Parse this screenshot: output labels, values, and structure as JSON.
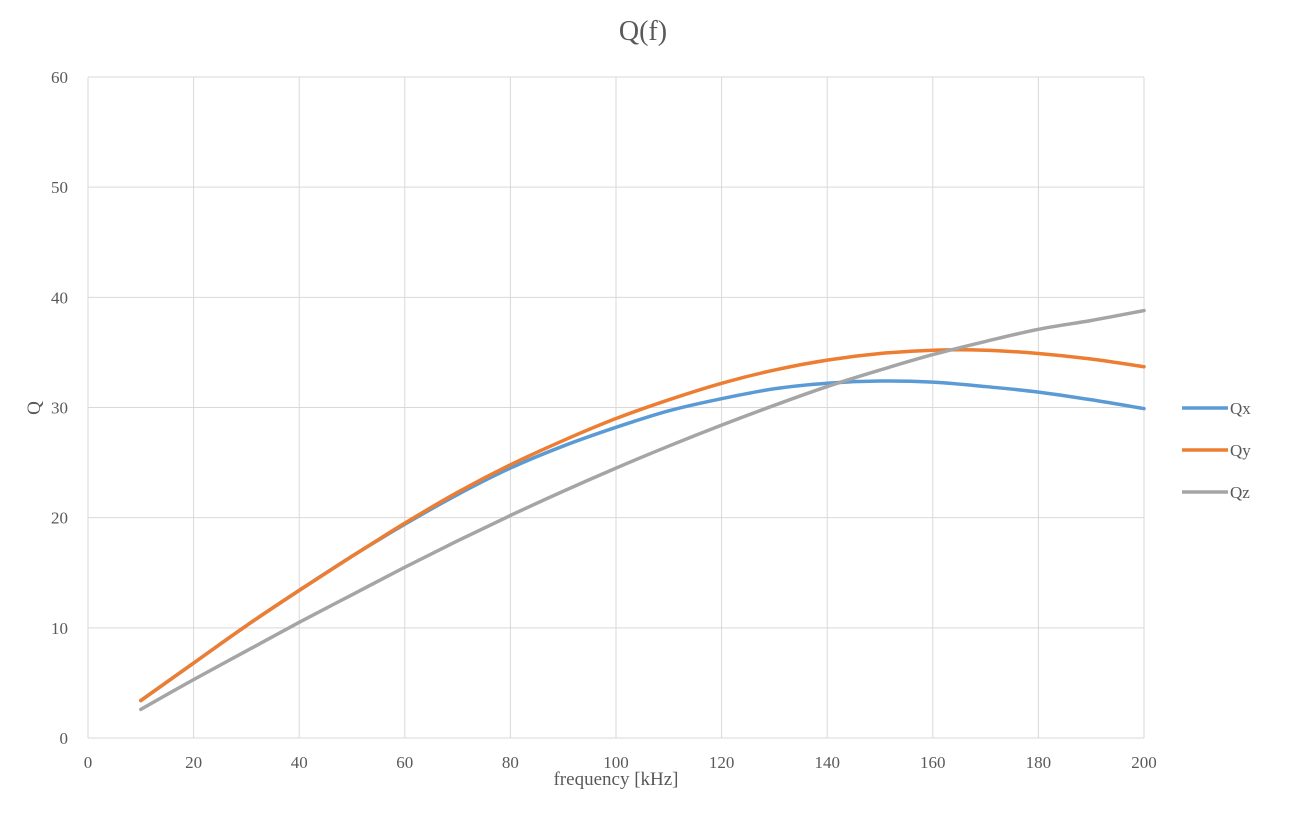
{
  "chart_data": {
    "type": "line",
    "title": "Q(f)",
    "xlabel": "frequency [kHz]",
    "ylabel": "Q",
    "xlim": [
      0,
      200
    ],
    "ylim": [
      0,
      60
    ],
    "xticks": [
      0,
      20,
      40,
      60,
      80,
      100,
      120,
      140,
      160,
      180,
      200
    ],
    "yticks": [
      0,
      10,
      20,
      30,
      40,
      50,
      60
    ],
    "grid": true,
    "legend_position": "right",
    "x": [
      10,
      20,
      30,
      40,
      50,
      60,
      70,
      80,
      90,
      100,
      110,
      120,
      130,
      140,
      150,
      160,
      170,
      180,
      190,
      200
    ],
    "series": [
      {
        "name": "Qx",
        "color": "#5b9bd5",
        "values": [
          3.4,
          6.8,
          10.2,
          13.4,
          16.5,
          19.4,
          22.1,
          24.5,
          26.5,
          28.2,
          29.7,
          30.8,
          31.7,
          32.2,
          32.4,
          32.3,
          31.9,
          31.4,
          30.7,
          29.9
        ]
      },
      {
        "name": "Qy",
        "color": "#ed7d31",
        "values": [
          3.4,
          6.8,
          10.2,
          13.4,
          16.5,
          19.5,
          22.3,
          24.8,
          27.0,
          29.0,
          30.7,
          32.2,
          33.4,
          34.3,
          34.9,
          35.2,
          35.2,
          34.9,
          34.4,
          33.7
        ]
      },
      {
        "name": "Qz",
        "color": "#a5a5a5",
        "values": [
          2.6,
          5.3,
          7.9,
          10.5,
          13.0,
          15.5,
          17.9,
          20.2,
          22.4,
          24.5,
          26.5,
          28.4,
          30.2,
          31.9,
          33.4,
          34.8,
          36.0,
          37.1,
          37.9,
          38.8
        ]
      }
    ]
  }
}
